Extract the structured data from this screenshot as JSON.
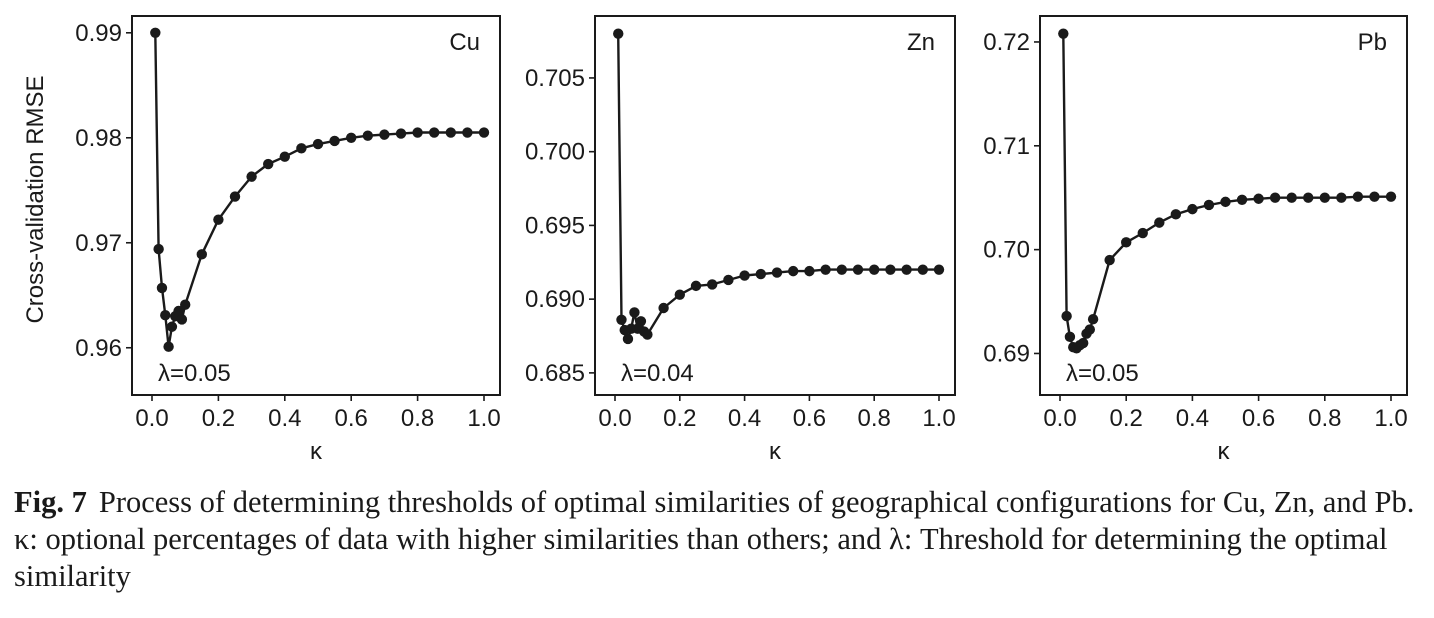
{
  "figure": {
    "caption_label": "Fig. 7",
    "caption_text": "Process of determining thresholds of optimal similarities of geographical configurations for Cu, Zn, and Pb. κ: optional percentages of data with higher similarities than others; and λ: Threshold for determining the optimal similarity"
  },
  "chart_data": [
    {
      "type": "line",
      "panel_label": "Cu",
      "annotation": "λ=0.05",
      "xlabel": "κ",
      "ylabel": "Cross-validation RMSE",
      "xlim": [
        0,
        1.0
      ],
      "ylim": [
        0.9555,
        0.9916
      ],
      "xticks": [
        "0.0",
        "0.2",
        "0.4",
        "0.6",
        "0.8",
        "1.0"
      ],
      "yticks": [
        "0.96",
        "0.97",
        "0.98",
        "0.99"
      ],
      "grid": false,
      "markers": true,
      "x": [
        0.01,
        0.02,
        0.03,
        0.04,
        0.05,
        0.06,
        0.07,
        0.08,
        0.09,
        0.1,
        0.15,
        0.2,
        0.25,
        0.3,
        0.35,
        0.4,
        0.45,
        0.5,
        0.55,
        0.6,
        0.65,
        0.7,
        0.75,
        0.8,
        0.85,
        0.9,
        0.95,
        1.0
      ],
      "y": [
        0.99,
        0.9694,
        0.9657,
        0.9631,
        0.9601,
        0.962,
        0.963,
        0.9635,
        0.9627,
        0.9641,
        0.9689,
        0.9722,
        0.9744,
        0.9763,
        0.9775,
        0.9782,
        0.979,
        0.9794,
        0.9797,
        0.98,
        0.9802,
        0.9803,
        0.9804,
        0.9805,
        0.9805,
        0.9805,
        0.9805,
        0.9805
      ]
    },
    {
      "type": "line",
      "panel_label": "Zn",
      "annotation": "λ=0.04",
      "xlabel": "κ",
      "ylabel": "",
      "xlim": [
        0,
        1.0
      ],
      "ylim": [
        0.6835,
        0.7092
      ],
      "xticks": [
        "0.0",
        "0.2",
        "0.4",
        "0.6",
        "0.8",
        "1.0"
      ],
      "yticks": [
        "0.685",
        "0.690",
        "0.695",
        "0.700",
        "0.705"
      ],
      "grid": false,
      "markers": true,
      "x": [
        0.01,
        0.02,
        0.03,
        0.04,
        0.05,
        0.06,
        0.07,
        0.08,
        0.09,
        0.1,
        0.15,
        0.2,
        0.25,
        0.3,
        0.35,
        0.4,
        0.45,
        0.5,
        0.55,
        0.6,
        0.65,
        0.7,
        0.75,
        0.8,
        0.85,
        0.9,
        0.95,
        1.0
      ],
      "y": [
        0.708,
        0.6886,
        0.6879,
        0.6873,
        0.688,
        0.6891,
        0.688,
        0.6885,
        0.6878,
        0.6876,
        0.6894,
        0.6903,
        0.6909,
        0.691,
        0.6913,
        0.6916,
        0.6917,
        0.6918,
        0.6919,
        0.6919,
        0.692,
        0.692,
        0.692,
        0.692,
        0.692,
        0.692,
        0.692,
        0.692
      ]
    },
    {
      "type": "line",
      "panel_label": "Pb",
      "annotation": "λ=0.05",
      "xlabel": "κ",
      "ylabel": "",
      "xlim": [
        0,
        1.0
      ],
      "ylim": [
        0.686,
        0.7225
      ],
      "xticks": [
        "0.0",
        "0.2",
        "0.4",
        "0.6",
        "0.8",
        "1.0"
      ],
      "yticks": [
        "0.69",
        "0.70",
        "0.71",
        "0.72"
      ],
      "grid": false,
      "markers": true,
      "x": [
        0.01,
        0.02,
        0.03,
        0.04,
        0.05,
        0.06,
        0.07,
        0.08,
        0.09,
        0.1,
        0.15,
        0.2,
        0.25,
        0.3,
        0.35,
        0.4,
        0.45,
        0.5,
        0.55,
        0.6,
        0.65,
        0.7,
        0.75,
        0.8,
        0.85,
        0.9,
        0.95,
        1.0
      ],
      "y": [
        0.7208,
        0.6936,
        0.6916,
        0.6906,
        0.6905,
        0.6908,
        0.691,
        0.6919,
        0.6923,
        0.6933,
        0.699,
        0.7007,
        0.7016,
        0.7026,
        0.7034,
        0.7039,
        0.7043,
        0.7046,
        0.7048,
        0.7049,
        0.705,
        0.705,
        0.705,
        0.705,
        0.705,
        0.7051,
        0.7051,
        0.7051
      ]
    }
  ]
}
